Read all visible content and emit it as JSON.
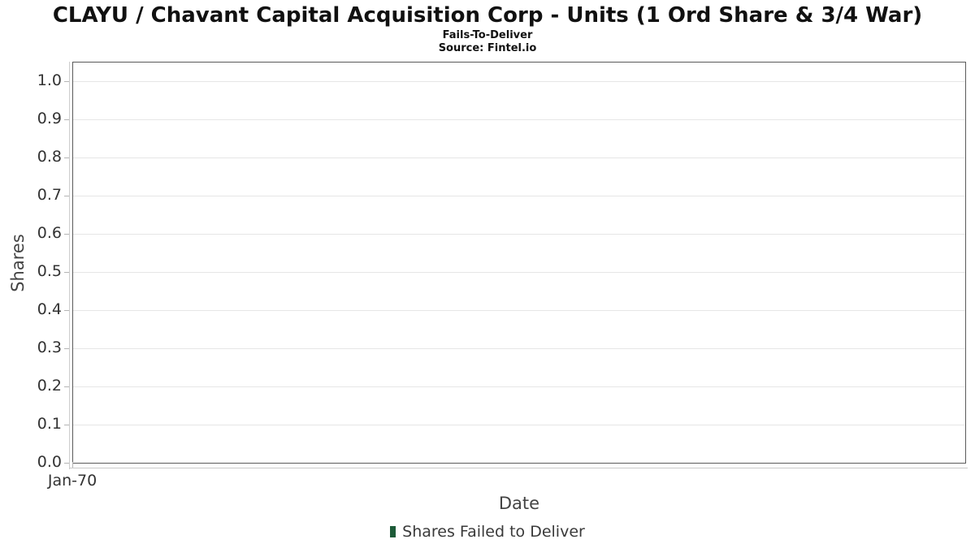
{
  "chart_data": {
    "type": "bar",
    "title": "CLAYU / Chavant Capital Acquisition Corp - Units (1 Ord Share & 3/4 War)",
    "subtitle": "Fails-To-Deliver",
    "source": "Source: Fintel.io",
    "xlabel": "Date",
    "ylabel": "Shares",
    "ylim": [
      0,
      1.05
    ],
    "y_ticks": [
      0,
      0.1,
      0.2,
      0.3,
      0.4,
      0.5,
      0.6,
      0.7,
      0.8,
      0.9,
      1.0
    ],
    "y_tick_labels": [
      "0.0",
      "0.1",
      "0.2",
      "0.3",
      "0.4",
      "0.5",
      "0.6",
      "0.7",
      "0.8",
      "0.9",
      "1.0"
    ],
    "x_tick_labels": [
      "Jan-70"
    ],
    "grid": true,
    "legend_position": "bottom",
    "series": [
      {
        "name": "Shares Failed to Deliver",
        "color": "#1d5b38",
        "x": [],
        "values": []
      }
    ],
    "styles": {
      "plot_border_color": "#5a5a5a",
      "gridline_color": "#e6e6e6",
      "tick_color": "#b5b5b5",
      "title_color": "#111111",
      "axis_label_color": "#444444",
      "tick_label_color": "#333333"
    }
  }
}
